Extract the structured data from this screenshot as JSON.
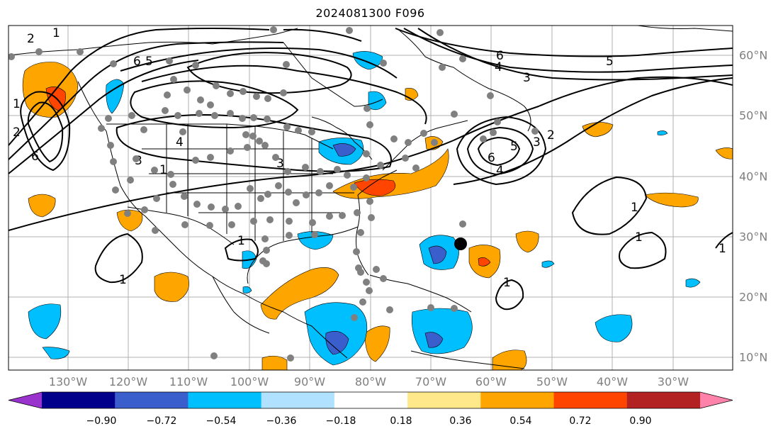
{
  "title": "2024081300 F096",
  "lon_labels": [
    "130°W",
    "120°W",
    "110°W",
    "100°W",
    "90°W",
    "80°W",
    "70°W",
    "60°W",
    "50°W",
    "40°W",
    "30°W"
  ],
  "lat_labels": [
    "60°N",
    "50°N",
    "40°N",
    "30°N",
    "20°N",
    "10°N"
  ],
  "colorbar": {
    "ticks": [
      "−0.90",
      "−0.72",
      "−0.54",
      "−0.36",
      "−0.18",
      "0.18",
      "0.36",
      "0.54",
      "0.72",
      "0.90"
    ],
    "colors": [
      "#9a32cd",
      "#00008b",
      "#3a5fcd",
      "#00bfff",
      "#b0e2ff",
      "#ffffff",
      "#ffe88a",
      "#ffa500",
      "#ff4500",
      "#b22222",
      "#ff82ab"
    ]
  },
  "contour_labels": [
    "6",
    "4",
    "3",
    "5",
    "1",
    "2"
  ]
}
